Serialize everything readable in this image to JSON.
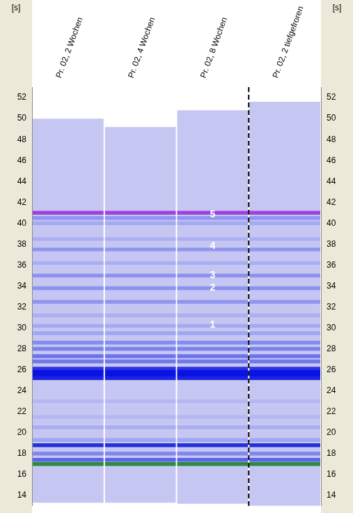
{
  "chart_data": {
    "type": "gel",
    "y_label": "[s]",
    "y2_label": "[s]",
    "categories": [
      "Pr. 02, 2 Wochen",
      "Pr. 02, 4 Wochen",
      "Pr. 02, 8 Wochen",
      "Pr. 02, 2 tiefgefroren"
    ],
    "lane_ranges": [
      [
        13.3,
        50.0
      ],
      [
        13.3,
        49.2
      ],
      [
        13.2,
        50.8
      ],
      [
        13.0,
        51.6
      ]
    ],
    "color": "#c6c6f3",
    "bands": [
      {
        "time": 17.0,
        "color": "#2e8b3e"
      },
      {
        "time": 17.4,
        "color": "#5a64e6"
      },
      {
        "time": 18.0,
        "color": "#8088ec"
      },
      {
        "time": 18.8,
        "color": "#2430d8"
      },
      {
        "time": 19.3,
        "color": "#a0a6f0"
      },
      {
        "time": 20.5,
        "color": "#a8aef0"
      },
      {
        "time": 21.5,
        "color": "#b4b8f2"
      },
      {
        "time": 23.0,
        "color": "#b4b8f2"
      },
      {
        "time": 25.2,
        "color": "#1a24e0"
      },
      {
        "time": 25.5,
        "color": "#0a12e4"
      },
      {
        "time": 25.8,
        "color": "#0a12e4"
      },
      {
        "time": 26.1,
        "color": "#2a34e2"
      },
      {
        "time": 26.8,
        "color": "#7078ea"
      },
      {
        "time": 27.3,
        "color": "#6c74ea"
      },
      {
        "time": 28.0,
        "color": "#7a82ec"
      },
      {
        "time": 28.6,
        "color": "#848cec"
      },
      {
        "time": 29.5,
        "color": "#a0a6f0"
      },
      {
        "time": 30.2,
        "color": "#a4aaf0"
      },
      {
        "time": 31.2,
        "color": "#acb0f0"
      },
      {
        "time": 32.5,
        "color": "#9096ee"
      },
      {
        "time": 33.8,
        "color": "#8c92ee"
      },
      {
        "time": 35.0,
        "color": "#8c92ee"
      },
      {
        "time": 36.2,
        "color": "#a8aef0"
      },
      {
        "time": 37.5,
        "color": "#9096ee"
      },
      {
        "time": 38.5,
        "color": "#acb0f0"
      },
      {
        "time": 40.0,
        "color": "#a4aaf0"
      },
      {
        "time": 40.5,
        "color": "#9096ee"
      },
      {
        "time": 41.0,
        "color": "#a040e0"
      }
    ],
    "annotations": [
      {
        "text": "1",
        "lane": "Pr. 02, 8 Wochen",
        "time": 30.3
      },
      {
        "text": "2",
        "lane": "Pr. 02, 8 Wochen",
        "time": 33.8
      },
      {
        "text": "3",
        "lane": "Pr. 02, 8 Wochen",
        "time": 35.0
      },
      {
        "text": "4",
        "lane": "Pr. 02, 8 Wochen",
        "time": 37.8
      },
      {
        "text": "5",
        "lane": "Pr. 02, 8 Wochen",
        "time": 40.8
      }
    ],
    "divider_after": "Pr. 02, 8 Wochen",
    "ylim": [
      13,
      53
    ],
    "yticks": [
      14,
      16,
      18,
      20,
      22,
      24,
      26,
      28,
      30,
      32,
      34,
      36,
      38,
      40,
      42,
      44,
      46,
      48,
      50,
      52
    ],
    "y2lim": [
      13,
      53
    ],
    "y2ticks": [
      14,
      16,
      18,
      20,
      22,
      24,
      26,
      28,
      30,
      32,
      34,
      36,
      38,
      40,
      42,
      44,
      46,
      48,
      50,
      52
    ],
    "grid": false
  }
}
